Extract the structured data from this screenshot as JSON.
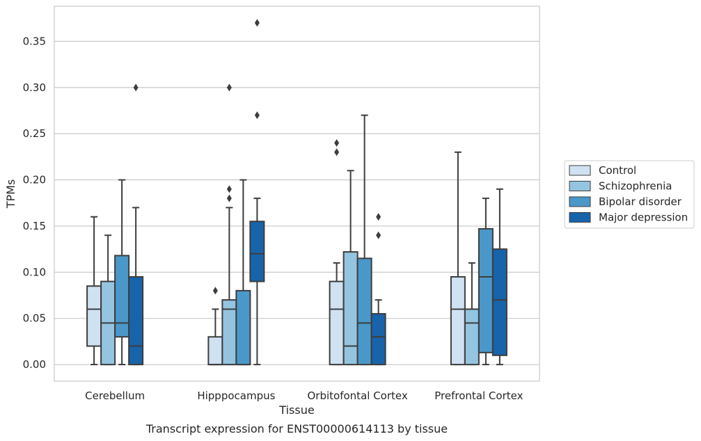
{
  "chart_data": {
    "type": "boxplot",
    "caption": "Transcript expression for ENST00000614113 by tissue",
    "xlabel": "Tissue",
    "ylabel": "TPMs",
    "ylim": [
      -0.018,
      0.388
    ],
    "yticks": [
      "0.00",
      "0.05",
      "0.10",
      "0.15",
      "0.20",
      "0.25",
      "0.30",
      "0.35"
    ],
    "grid": "horizontal",
    "legend_position": "right",
    "categories": [
      "Cerebellum",
      "Hipppocampus",
      "Orbitofontal Cortex",
      "Prefrontal Cortex"
    ],
    "series": [
      {
        "name": "Control",
        "color": "#d0e1f2",
        "boxes": [
          {
            "min": 0.0,
            "q1": 0.02,
            "median": 0.06,
            "q3": 0.085,
            "max": 0.16,
            "outliers": []
          },
          {
            "min": 0.0,
            "q1": 0.0,
            "median": 0.0,
            "q3": 0.03,
            "max": 0.06,
            "outliers": [
              0.08
            ]
          },
          {
            "min": 0.0,
            "q1": 0.0,
            "median": 0.06,
            "q3": 0.09,
            "max": 0.11,
            "outliers": [
              0.23,
              0.24
            ]
          },
          {
            "min": 0.0,
            "q1": 0.0,
            "median": 0.06,
            "q3": 0.095,
            "max": 0.23,
            "outliers": []
          }
        ]
      },
      {
        "name": "Schizophrenia",
        "color": "#94c4df",
        "boxes": [
          {
            "min": 0.0,
            "q1": 0.0,
            "median": 0.045,
            "q3": 0.09,
            "max": 0.14,
            "outliers": []
          },
          {
            "min": 0.0,
            "q1": 0.0,
            "median": 0.06,
            "q3": 0.07,
            "max": 0.17,
            "outliers": [
              0.18,
              0.19,
              0.3
            ]
          },
          {
            "min": 0.0,
            "q1": 0.0,
            "median": 0.02,
            "q3": 0.122,
            "max": 0.21,
            "outliers": []
          },
          {
            "min": 0.0,
            "q1": 0.0,
            "median": 0.045,
            "q3": 0.06,
            "max": 0.11,
            "outliers": []
          }
        ]
      },
      {
        "name": "Bipolar disorder",
        "color": "#4a98c9",
        "boxes": [
          {
            "min": 0.0,
            "q1": 0.03,
            "median": 0.045,
            "q3": 0.118,
            "max": 0.2,
            "outliers": []
          },
          {
            "min": 0.0,
            "q1": 0.0,
            "median": 0.0,
            "q3": 0.08,
            "max": 0.2,
            "outliers": []
          },
          {
            "min": 0.0,
            "q1": 0.0,
            "median": 0.045,
            "q3": 0.115,
            "max": 0.27,
            "outliers": []
          },
          {
            "min": 0.0,
            "q1": 0.013,
            "median": 0.095,
            "q3": 0.147,
            "max": 0.18,
            "outliers": []
          }
        ]
      },
      {
        "name": "Major depression",
        "color": "#1764ab",
        "boxes": [
          {
            "min": 0.0,
            "q1": 0.0,
            "median": 0.02,
            "q3": 0.095,
            "max": 0.17,
            "outliers": [
              0.3
            ]
          },
          {
            "min": 0.0,
            "q1": 0.09,
            "median": 0.12,
            "q3": 0.155,
            "max": 0.18,
            "outliers": [
              0.27,
              0.37
            ]
          },
          {
            "min": 0.0,
            "q1": 0.0,
            "median": 0.03,
            "q3": 0.055,
            "max": 0.07,
            "outliers": [
              0.14,
              0.16
            ]
          },
          {
            "min": 0.0,
            "q1": 0.01,
            "median": 0.07,
            "q3": 0.125,
            "max": 0.19,
            "outliers": []
          }
        ]
      }
    ]
  }
}
